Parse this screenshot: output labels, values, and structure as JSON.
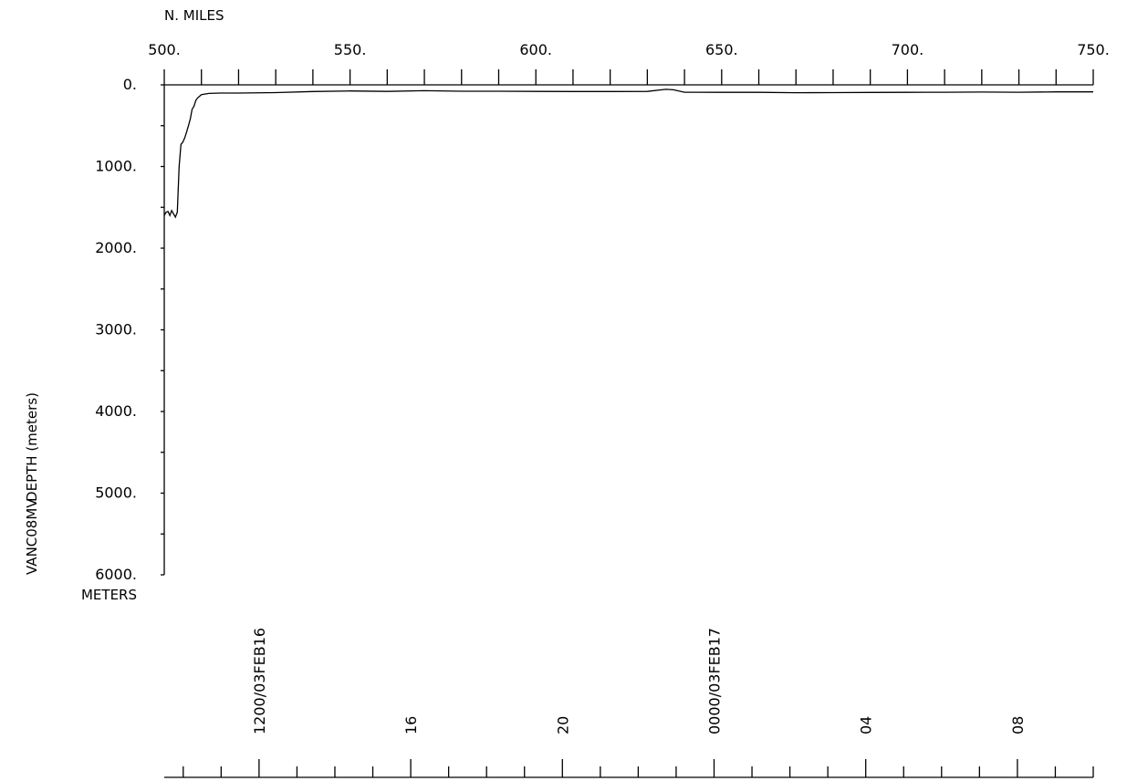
{
  "chart_data": {
    "type": "line",
    "x_axis": {
      "label": "N.  MILES",
      "ticks": [
        500,
        550,
        600,
        650,
        700,
        750
      ],
      "tick_labels": [
        "500.",
        "550.",
        "600.",
        "650.",
        "700.",
        "750."
      ],
      "minor_step": 10,
      "range": [
        500,
        750
      ]
    },
    "y_axis": {
      "label": "DEPTH  (meters)",
      "side_label": "VANC08MV",
      "unit_label": "METERS",
      "ticks": [
        0,
        1000,
        2000,
        3000,
        4000,
        5000,
        6000
      ],
      "tick_labels": [
        "0.",
        "1000.",
        "2000.",
        "3000.",
        "4000.",
        "5000.",
        "6000."
      ],
      "range": [
        0,
        6000
      ],
      "inverted": true
    },
    "time_axis": {
      "labels": [
        {
          "text": "1200/03FEB16",
          "hour": 12
        },
        {
          "text": "16",
          "hour": 16
        },
        {
          "text": "20",
          "hour": 20
        },
        {
          "text": "0000/03FEB17",
          "hour": 24
        },
        {
          "text": "04",
          "hour": 28
        },
        {
          "text": "08",
          "hour": 32
        }
      ],
      "hour_range": [
        9.5,
        34.0
      ]
    },
    "series": [
      {
        "points": [
          [
            500.0,
            1600
          ],
          [
            500.5,
            1560
          ],
          [
            501.0,
            1550
          ],
          [
            501.5,
            1600
          ],
          [
            502.0,
            1540
          ],
          [
            502.5,
            1580
          ],
          [
            503.0,
            1620
          ],
          [
            503.5,
            1560
          ],
          [
            504.0,
            1000
          ],
          [
            504.5,
            730
          ],
          [
            505.0,
            700
          ],
          [
            505.5,
            650
          ],
          [
            506.0,
            580
          ],
          [
            506.5,
            500
          ],
          [
            507.0,
            420
          ],
          [
            507.5,
            300
          ],
          [
            508.0,
            260
          ],
          [
            508.5,
            190
          ],
          [
            509.0,
            160
          ],
          [
            510.0,
            120
          ],
          [
            512.0,
            105
          ],
          [
            515.0,
            100
          ],
          [
            520.0,
            100
          ],
          [
            530.0,
            95
          ],
          [
            540.0,
            82
          ],
          [
            550.0,
            75
          ],
          [
            560.0,
            80
          ],
          [
            570.0,
            72
          ],
          [
            580.0,
            78
          ],
          [
            590.0,
            78
          ],
          [
            600.0,
            80
          ],
          [
            610.0,
            82
          ],
          [
            620.0,
            82
          ],
          [
            630.0,
            80
          ],
          [
            635.0,
            55
          ],
          [
            637.0,
            60
          ],
          [
            640.0,
            90
          ],
          [
            650.0,
            92
          ],
          [
            660.0,
            92
          ],
          [
            670.0,
            96
          ],
          [
            680.0,
            95
          ],
          [
            690.0,
            93
          ],
          [
            700.0,
            92
          ],
          [
            710.0,
            90
          ],
          [
            720.0,
            88
          ],
          [
            730.0,
            90
          ],
          [
            740.0,
            86
          ],
          [
            750.0,
            86
          ]
        ]
      }
    ]
  }
}
